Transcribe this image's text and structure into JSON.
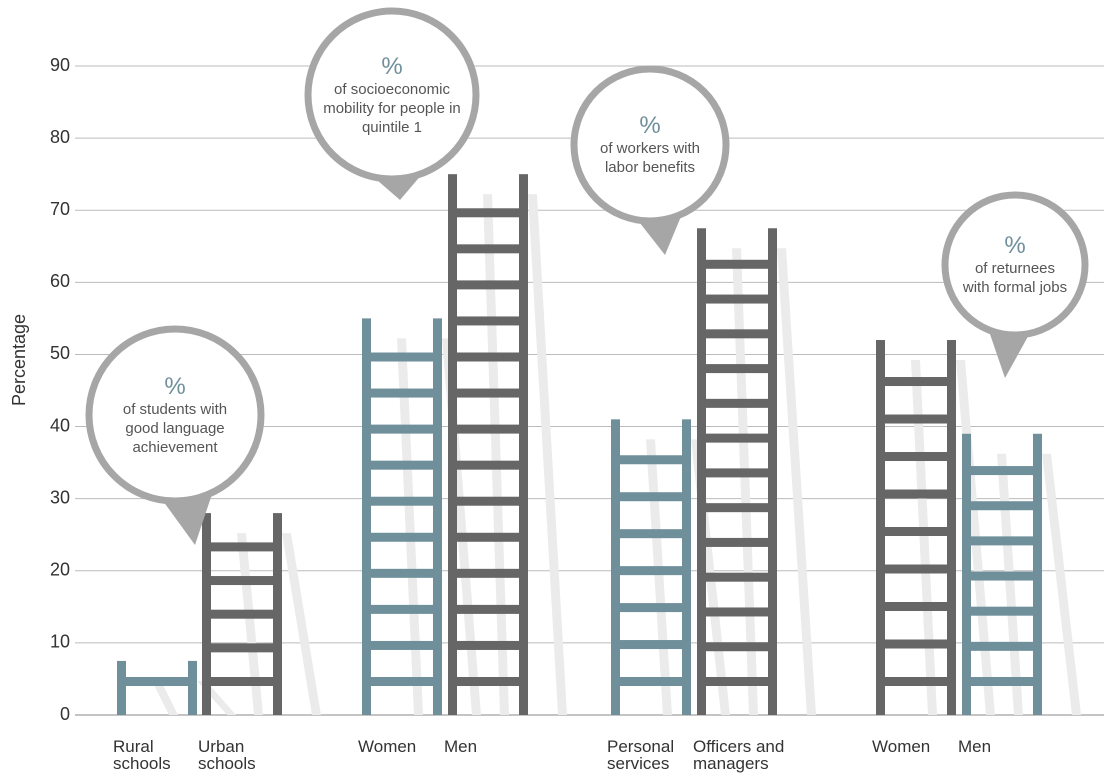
{
  "chart_data": {
    "type": "ladder",
    "ylabel": "Percentage",
    "ylim": [
      0,
      90
    ],
    "yticks": [
      0,
      10,
      20,
      30,
      40,
      50,
      60,
      70,
      80,
      90
    ],
    "grid": true,
    "categories": [
      "Rural schools",
      "Urban schools",
      "Women",
      "Men",
      "Personal services",
      "Officers and managers",
      "Women",
      "Men"
    ],
    "values": [
      7.5,
      28,
      55,
      75,
      41,
      67.5,
      52,
      39
    ],
    "colors": [
      "#6f8f9b",
      "#666666",
      "#6f8f9b",
      "#666666",
      "#6f8f9b",
      "#666666",
      "#666666",
      "#6f8f9b"
    ],
    "callouts": [
      {
        "symbol": "%",
        "text": "of students with good language achievement"
      },
      {
        "symbol": "%",
        "text": "of socioeconomic mobility for people in quintile 1"
      },
      {
        "symbol": "%",
        "text": "of workers with labor benefits"
      },
      {
        "symbol": "%",
        "text": "of returnees with formal jobs"
      }
    ]
  }
}
